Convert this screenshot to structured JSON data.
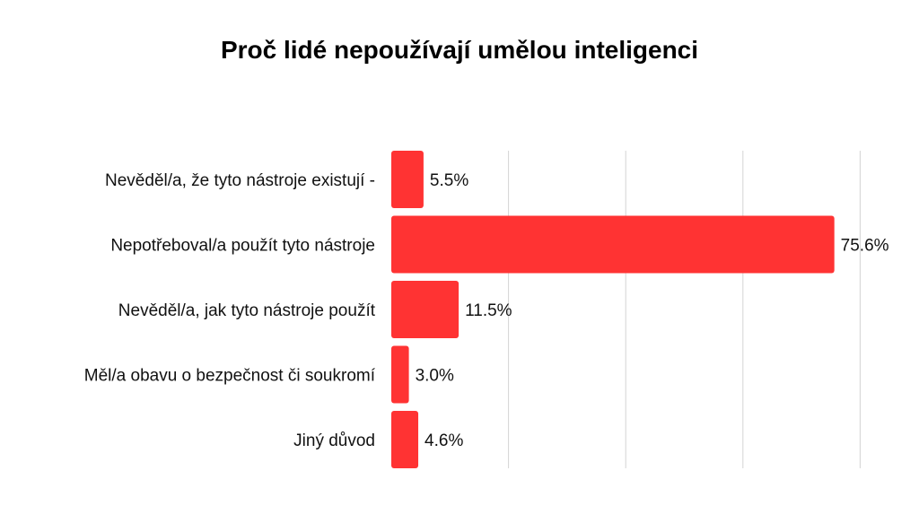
{
  "chart_data": {
    "type": "bar",
    "orientation": "horizontal",
    "title": "Proč lidé nepoužívají umělou inteligenci",
    "xlabel": "",
    "ylabel": "",
    "categories": [
      "Nevěděl/a, že tyto nástroje existují -",
      "Nepotřeboval/a použít tyto nástroje",
      "Nevěděl/a, jak tyto nástroje použít",
      "Měl/a obavu o bezpečnost či soukromí",
      "Jiný důvod"
    ],
    "values": [
      5.5,
      75.6,
      11.5,
      3.0,
      4.6
    ],
    "data_labels": [
      "5.5%",
      "75.6%",
      "11.5%",
      "3.0%",
      "4.6%"
    ],
    "xlim": [
      0,
      80
    ],
    "grid": true,
    "legend": "none",
    "bar_color": "#ff3333",
    "gridline_color": "#d4d4d4"
  }
}
